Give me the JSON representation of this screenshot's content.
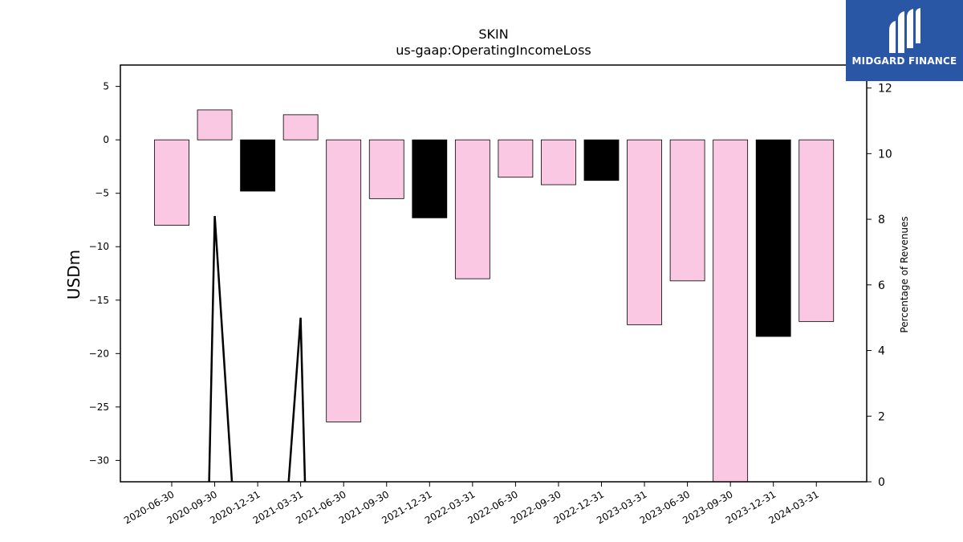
{
  "chart_data": {
    "type": "bar",
    "title": "SKIN",
    "subtitle": "us-gaap:OperatingIncomeLoss",
    "ylabel": "USDm",
    "y2label": "Percentage of Revenues",
    "ylim": [
      -32,
      7
    ],
    "y2lim": [
      0,
      12.7
    ],
    "yticks": [
      5,
      0,
      -5,
      -10,
      -15,
      -20,
      -25,
      -30
    ],
    "y2ticks": [
      0,
      2,
      4,
      6,
      8,
      10,
      12
    ],
    "categories": [
      "2020-06-30",
      "2020-09-30",
      "2020-12-31",
      "2021-03-31",
      "2021-06-30",
      "2021-09-30",
      "2021-12-31",
      "2022-03-31",
      "2022-06-30",
      "2022-09-30",
      "2022-12-31",
      "2023-03-31",
      "2023-06-30",
      "2023-09-30",
      "2023-12-31",
      "2024-03-31"
    ],
    "values": [
      -8.0,
      2.8,
      -4.8,
      2.35,
      -26.4,
      -5.5,
      -7.3,
      -13.0,
      -3.5,
      -4.2,
      -3.8,
      -17.3,
      -13.2,
      -32.5,
      -18.4,
      -17.0
    ],
    "bar_colors": [
      "#fbc8e4",
      "#fbc8e4",
      "#000000",
      "#fbc8e4",
      "#fbc8e4",
      "#fbc8e4",
      "#000000",
      "#fbc8e4",
      "#fbc8e4",
      "#fbc8e4",
      "#000000",
      "#fbc8e4",
      "#fbc8e4",
      "#fbc8e4",
      "#000000",
      "#fbc8e4"
    ],
    "line_series": {
      "name": "Percentage of Revenues",
      "axis": "right",
      "segments": [
        [
          [
            0.87,
            0
          ],
          [
            1.0,
            8.1
          ],
          [
            1.4,
            0
          ]
        ],
        [
          [
            2.72,
            0
          ],
          [
            3.0,
            5.0
          ],
          [
            3.1,
            0
          ]
        ]
      ]
    },
    "grid": false
  },
  "logo": {
    "text": "MIDGARD FINANCE",
    "color": "#2a56a6"
  }
}
